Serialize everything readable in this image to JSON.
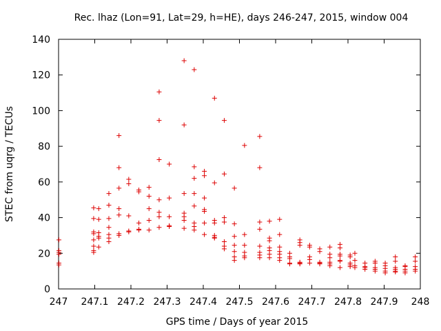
{
  "chart_data": {
    "type": "scatter",
    "title": "Rec. lhaz (Lon=91, Lat=29, h=HE), days 246-247, 2015, window 004",
    "xlabel": "GPS time / Days of year 2015",
    "ylabel": "STEC from uqrg / TECUs",
    "xlim": [
      247,
      248
    ],
    "ylim": [
      0,
      140
    ],
    "xticks": [
      247,
      247.1,
      247.2,
      247.3,
      247.4,
      247.5,
      247.6,
      247.7,
      247.8,
      247.9,
      248
    ],
    "xtick_labels": [
      "247",
      "247.1",
      "247.2",
      "247.3",
      "247.4",
      "247.5",
      "247.6",
      "247.7",
      "247.8",
      "247.9",
      "248"
    ],
    "yticks": [
      0,
      20,
      40,
      60,
      80,
      100,
      120,
      140
    ],
    "ytick_labels": [
      "0",
      "20",
      "40",
      "60",
      "80",
      "100",
      "120",
      "140"
    ],
    "grid": false,
    "marker": "+",
    "marker_color": "#dd0000",
    "points": [
      [
        247.001,
        27.5
      ],
      [
        247.001,
        21.5
      ],
      [
        247.001,
        20.5
      ],
      [
        247.001,
        19.5
      ],
      [
        247.001,
        14.5
      ],
      [
        247.001,
        13.5
      ],
      [
        247.097,
        45.5
      ],
      [
        247.097,
        39.5
      ],
      [
        247.097,
        32
      ],
      [
        247.097,
        31
      ],
      [
        247.097,
        27.5
      ],
      [
        247.097,
        24
      ],
      [
        247.097,
        21.5
      ],
      [
        247.097,
        20.5
      ],
      [
        247.111,
        45
      ],
      [
        247.111,
        39
      ],
      [
        247.111,
        31.5
      ],
      [
        247.111,
        29.5
      ],
      [
        247.111,
        28.5
      ],
      [
        247.111,
        23.5
      ],
      [
        247.139,
        53.5
      ],
      [
        247.139,
        47
      ],
      [
        247.139,
        39.5
      ],
      [
        247.139,
        34.5
      ],
      [
        247.139,
        30.5
      ],
      [
        247.139,
        28.5
      ],
      [
        247.139,
        26.5
      ],
      [
        247.167,
        86
      ],
      [
        247.167,
        68
      ],
      [
        247.167,
        56.5
      ],
      [
        247.167,
        45
      ],
      [
        247.167,
        41.5
      ],
      [
        247.167,
        31
      ],
      [
        247.167,
        30
      ],
      [
        247.194,
        61.5
      ],
      [
        247.194,
        59
      ],
      [
        247.194,
        41
      ],
      [
        247.194,
        32.5
      ],
      [
        247.194,
        32
      ],
      [
        247.222,
        55.5
      ],
      [
        247.222,
        54.5
      ],
      [
        247.222,
        37
      ],
      [
        247.222,
        33.5
      ],
      [
        247.222,
        33
      ],
      [
        247.25,
        57
      ],
      [
        247.25,
        52
      ],
      [
        247.25,
        45
      ],
      [
        247.25,
        38.5
      ],
      [
        247.25,
        33
      ],
      [
        247.278,
        110.5
      ],
      [
        247.278,
        94.5
      ],
      [
        247.278,
        72.5
      ],
      [
        247.278,
        50
      ],
      [
        247.278,
        43
      ],
      [
        247.278,
        40.5
      ],
      [
        247.278,
        34.5
      ],
      [
        247.306,
        70
      ],
      [
        247.306,
        51
      ],
      [
        247.306,
        40.5
      ],
      [
        247.306,
        35.5
      ],
      [
        247.306,
        35
      ],
      [
        247.347,
        128
      ],
      [
        247.347,
        92
      ],
      [
        247.347,
        53.5
      ],
      [
        247.347,
        42.5
      ],
      [
        247.347,
        40.5
      ],
      [
        247.347,
        38.5
      ],
      [
        247.347,
        34
      ],
      [
        247.375,
        123
      ],
      [
        247.375,
        68.5
      ],
      [
        247.375,
        62
      ],
      [
        247.375,
        53.5
      ],
      [
        247.375,
        46.5
      ],
      [
        247.375,
        37
      ],
      [
        247.375,
        35
      ],
      [
        247.375,
        33
      ],
      [
        247.403,
        66
      ],
      [
        247.403,
        63.5
      ],
      [
        247.403,
        51
      ],
      [
        247.403,
        44.5
      ],
      [
        247.403,
        43.5
      ],
      [
        247.403,
        37
      ],
      [
        247.403,
        30.5
      ],
      [
        247.431,
        107
      ],
      [
        247.431,
        59.5
      ],
      [
        247.431,
        38.5
      ],
      [
        247.431,
        37
      ],
      [
        247.431,
        30
      ],
      [
        247.431,
        29
      ],
      [
        247.431,
        28.5
      ],
      [
        247.458,
        94.5
      ],
      [
        247.458,
        64.5
      ],
      [
        247.458,
        40
      ],
      [
        247.458,
        37.5
      ],
      [
        247.458,
        26.5
      ],
      [
        247.458,
        24
      ],
      [
        247.458,
        22.5
      ],
      [
        247.486,
        56.5
      ],
      [
        247.486,
        36.5
      ],
      [
        247.486,
        29.5
      ],
      [
        247.486,
        24.5
      ],
      [
        247.486,
        21
      ],
      [
        247.486,
        18
      ],
      [
        247.486,
        16
      ],
      [
        247.514,
        80.5
      ],
      [
        247.514,
        30.5
      ],
      [
        247.514,
        24.5
      ],
      [
        247.514,
        20.5
      ],
      [
        247.514,
        18.5
      ],
      [
        247.514,
        17.5
      ],
      [
        247.556,
        85.5
      ],
      [
        247.556,
        68
      ],
      [
        247.556,
        37.5
      ],
      [
        247.556,
        33.5
      ],
      [
        247.556,
        24
      ],
      [
        247.556,
        20.5
      ],
      [
        247.556,
        19
      ],
      [
        247.556,
        17.5
      ],
      [
        247.583,
        38
      ],
      [
        247.583,
        28.5
      ],
      [
        247.583,
        27
      ],
      [
        247.583,
        23
      ],
      [
        247.583,
        21.5
      ],
      [
        247.583,
        19.5
      ],
      [
        247.583,
        17.5
      ],
      [
        247.611,
        39
      ],
      [
        247.611,
        30.5
      ],
      [
        247.611,
        23.5
      ],
      [
        247.611,
        21
      ],
      [
        247.611,
        19.5
      ],
      [
        247.611,
        17.5
      ],
      [
        247.611,
        16
      ],
      [
        247.639,
        20
      ],
      [
        247.639,
        18
      ],
      [
        247.639,
        17
      ],
      [
        247.639,
        14.5
      ],
      [
        247.639,
        14
      ],
      [
        247.667,
        27.5
      ],
      [
        247.667,
        26
      ],
      [
        247.667,
        24.5
      ],
      [
        247.667,
        15
      ],
      [
        247.667,
        14.5
      ],
      [
        247.667,
        14
      ],
      [
        247.694,
        24.5
      ],
      [
        247.694,
        23.5
      ],
      [
        247.694,
        18
      ],
      [
        247.694,
        16.5
      ],
      [
        247.694,
        14.5
      ],
      [
        247.722,
        22.5
      ],
      [
        247.722,
        21
      ],
      [
        247.722,
        15
      ],
      [
        247.722,
        14.5
      ],
      [
        247.722,
        14
      ],
      [
        247.75,
        23.5
      ],
      [
        247.75,
        19.5
      ],
      [
        247.75,
        17.5
      ],
      [
        247.75,
        15
      ],
      [
        247.75,
        14
      ],
      [
        247.75,
        13
      ],
      [
        247.778,
        25
      ],
      [
        247.778,
        23
      ],
      [
        247.778,
        19.5
      ],
      [
        247.778,
        18.5
      ],
      [
        247.778,
        16
      ],
      [
        247.778,
        15.5
      ],
      [
        247.778,
        12
      ],
      [
        247.806,
        19
      ],
      [
        247.806,
        18
      ],
      [
        247.806,
        14.5
      ],
      [
        247.806,
        13.5
      ],
      [
        247.806,
        12.5
      ],
      [
        247.819,
        20
      ],
      [
        247.819,
        16
      ],
      [
        247.819,
        13
      ],
      [
        247.819,
        12
      ],
      [
        247.847,
        14.5
      ],
      [
        247.847,
        12.5
      ],
      [
        247.847,
        12
      ],
      [
        247.847,
        11
      ],
      [
        247.875,
        15.5
      ],
      [
        247.875,
        14.5
      ],
      [
        247.875,
        12
      ],
      [
        247.875,
        11
      ],
      [
        247.875,
        10
      ],
      [
        247.903,
        14.5
      ],
      [
        247.903,
        13
      ],
      [
        247.903,
        11.5
      ],
      [
        247.903,
        10
      ],
      [
        247.903,
        9
      ],
      [
        247.931,
        18
      ],
      [
        247.931,
        15.5
      ],
      [
        247.931,
        12
      ],
      [
        247.931,
        11
      ],
      [
        247.931,
        10
      ],
      [
        247.931,
        9.5
      ],
      [
        247.958,
        13
      ],
      [
        247.958,
        12.5
      ],
      [
        247.958,
        11
      ],
      [
        247.958,
        10
      ],
      [
        247.958,
        9
      ],
      [
        247.986,
        18
      ],
      [
        247.986,
        15.5
      ],
      [
        247.986,
        12.5
      ],
      [
        247.986,
        11
      ],
      [
        247.986,
        10
      ]
    ]
  }
}
